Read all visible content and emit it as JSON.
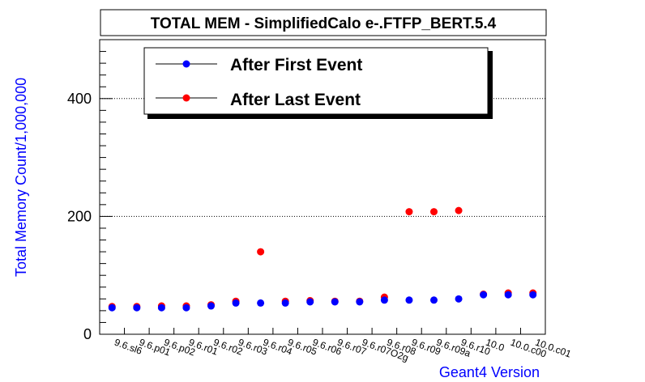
{
  "chart_data": {
    "type": "scatter",
    "title": "TOTAL MEM - SimplifiedCalo e-.FTFP_BERT.5.4",
    "xlabel": "Geant4 Version",
    "ylabel": "Total Memory Count/1,000,000",
    "ylim": [
      0,
      500
    ],
    "yticks": [
      0,
      200,
      400
    ],
    "grid": true,
    "legend_position": "top-left",
    "categories": [
      "9.6.sl6",
      "9.6.p01",
      "9.6.p02",
      "9.6.r01",
      "9.6.r02",
      "9.6.r03",
      "9.6.r04",
      "9.6.r05",
      "9.6.r06",
      "9.6.r07",
      "9.6.r07O2g",
      "9.6.r08",
      "9.6.r09",
      "9.6.r09a",
      "9.6.r10",
      "10.0",
      "10.0.c00",
      "10.0.c01"
    ],
    "series": [
      {
        "name": "After First Event",
        "color": "#0000ff",
        "values": [
          45,
          45,
          45,
          45,
          48,
          53,
          53,
          53,
          55,
          55,
          55,
          58,
          58,
          58,
          60,
          67,
          67,
          67
        ]
      },
      {
        "name": "After Last Event",
        "color": "#ff0000",
        "values": [
          47,
          47,
          48,
          48,
          50,
          56,
          140,
          56,
          57,
          56,
          56,
          63,
          208,
          208,
          210,
          68,
          70,
          70
        ]
      }
    ],
    "axis_title_color": "#0000ff"
  }
}
